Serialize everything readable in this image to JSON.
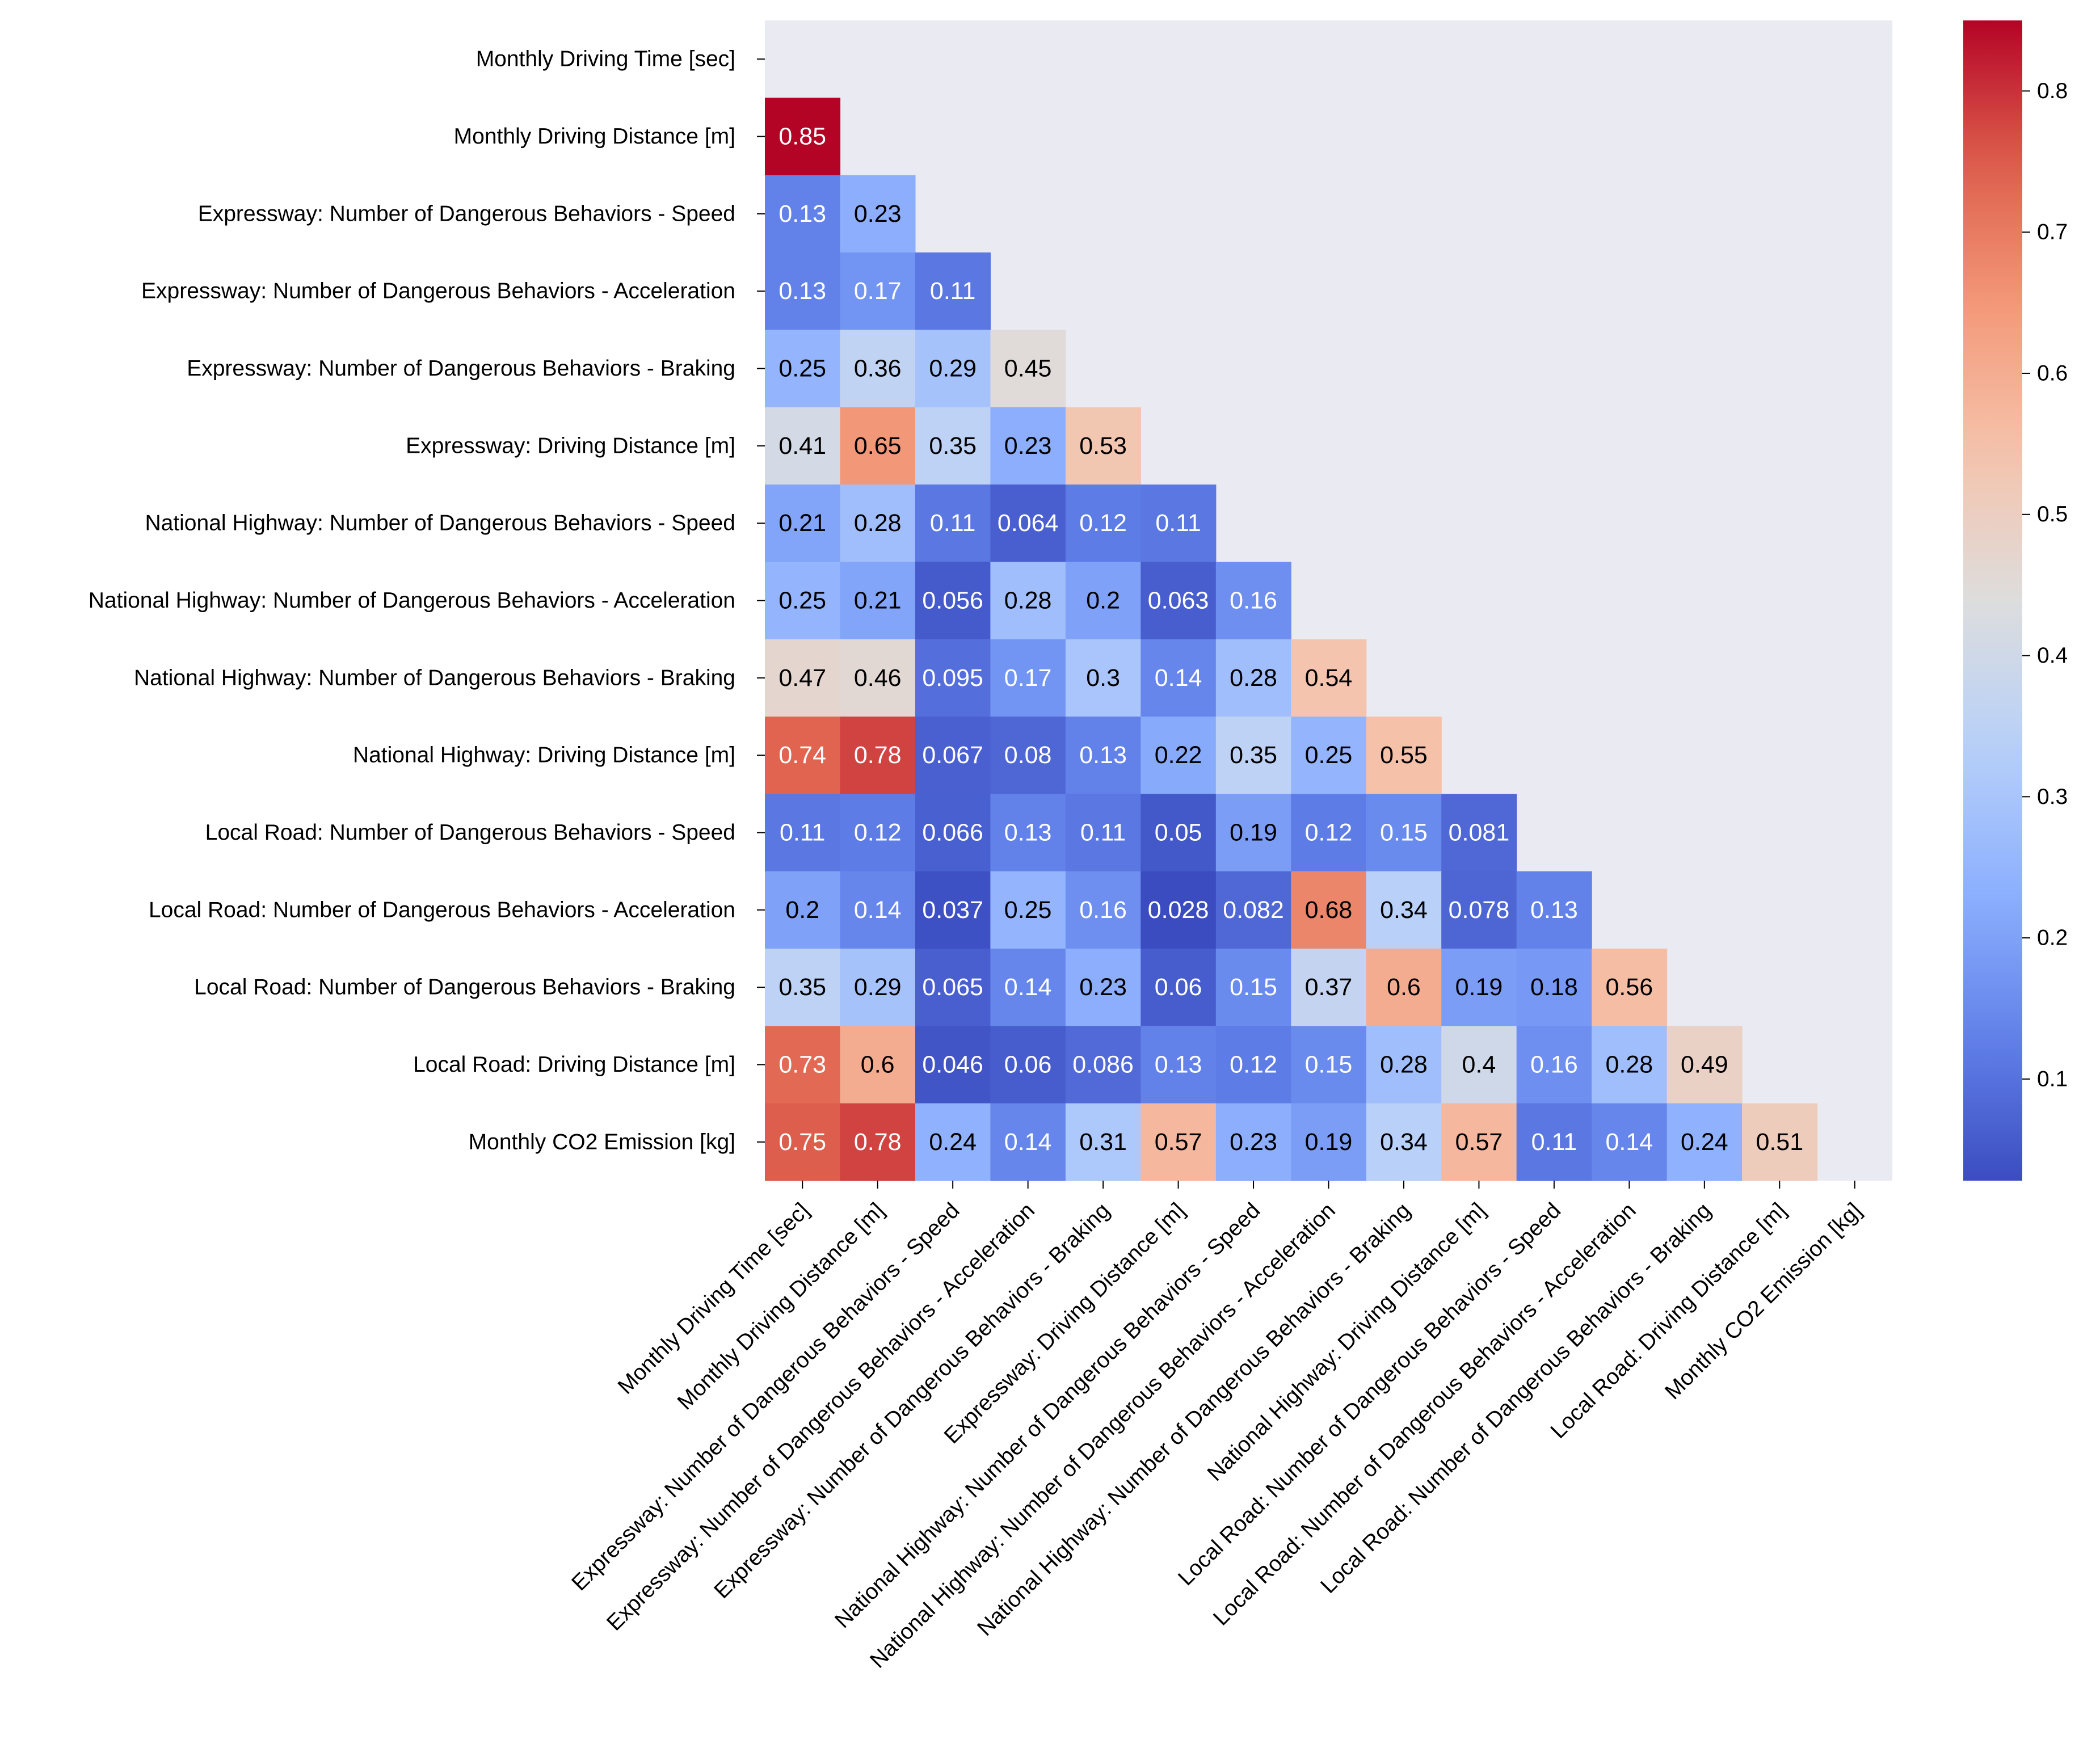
{
  "chart_data": {
    "type": "heatmap",
    "title": "",
    "xlabel": "",
    "ylabel": "",
    "labels": [
      "Monthly Driving Time [sec]",
      "Monthly Driving Distance [m]",
      "Expressway: Number of Dangerous Behaviors - Speed",
      "Expressway: Number of Dangerous Behaviors - Acceleration",
      "Expressway: Number of Dangerous Behaviors - Braking",
      "Expressway: Driving Distance [m]",
      "National Highway: Number of Dangerous Behaviors - Speed",
      "National Highway: Number of Dangerous Behaviors - Acceleration",
      "National Highway: Number of Dangerous Behaviors - Braking",
      "National Highway: Driving Distance [m]",
      "Local Road: Number of Dangerous Behaviors - Speed",
      "Local Road: Number of Dangerous Behaviors - Acceleration",
      "Local Road: Number of Dangerous Behaviors - Braking",
      "Local Road: Driving Distance [m]",
      "Monthly CO2 Emission [kg]"
    ],
    "mask": "upper triangle incl. diagonal",
    "values": [
      [],
      [
        "0.85"
      ],
      [
        "0.13",
        "0.23"
      ],
      [
        "0.13",
        "0.17",
        "0.11"
      ],
      [
        "0.25",
        "0.36",
        "0.29",
        "0.45"
      ],
      [
        "0.41",
        "0.65",
        "0.35",
        "0.23",
        "0.53"
      ],
      [
        "0.21",
        "0.28",
        "0.11",
        "0.064",
        "0.12",
        "0.11"
      ],
      [
        "0.25",
        "0.21",
        "0.056",
        "0.28",
        "0.2",
        "0.063",
        "0.16"
      ],
      [
        "0.47",
        "0.46",
        "0.095",
        "0.17",
        "0.3",
        "0.14",
        "0.28",
        "0.54"
      ],
      [
        "0.74",
        "0.78",
        "0.067",
        "0.08",
        "0.13",
        "0.22",
        "0.35",
        "0.25",
        "0.55"
      ],
      [
        "0.11",
        "0.12",
        "0.066",
        "0.13",
        "0.11",
        "0.05",
        "0.19",
        "0.12",
        "0.15",
        "0.081"
      ],
      [
        "0.2",
        "0.14",
        "0.037",
        "0.25",
        "0.16",
        "0.028",
        "0.082",
        "0.68",
        "0.34",
        "0.078",
        "0.13"
      ],
      [
        "0.35",
        "0.29",
        "0.065",
        "0.14",
        "0.23",
        "0.06",
        "0.15",
        "0.37",
        "0.6",
        "0.19",
        "0.18",
        "0.56"
      ],
      [
        "0.73",
        "0.6",
        "0.046",
        "0.06",
        "0.086",
        "0.13",
        "0.12",
        "0.15",
        "0.28",
        "0.4",
        "0.16",
        "0.28",
        "0.49"
      ],
      [
        "0.75",
        "0.78",
        "0.24",
        "0.14",
        "0.31",
        "0.57",
        "0.23",
        "0.19",
        "0.34",
        "0.57",
        "0.11",
        "0.14",
        "0.24",
        "0.51"
      ]
    ],
    "colormap": "coolwarm",
    "color_range": [
      0.028,
      0.85
    ],
    "colorbar_ticks": [
      "0.1",
      "0.2",
      "0.3",
      "0.4",
      "0.5",
      "0.6",
      "0.7",
      "0.8"
    ],
    "background_color": "#eaeaf2",
    "text_colors": {
      "dark": "#000000",
      "light": "#ffffff"
    }
  }
}
